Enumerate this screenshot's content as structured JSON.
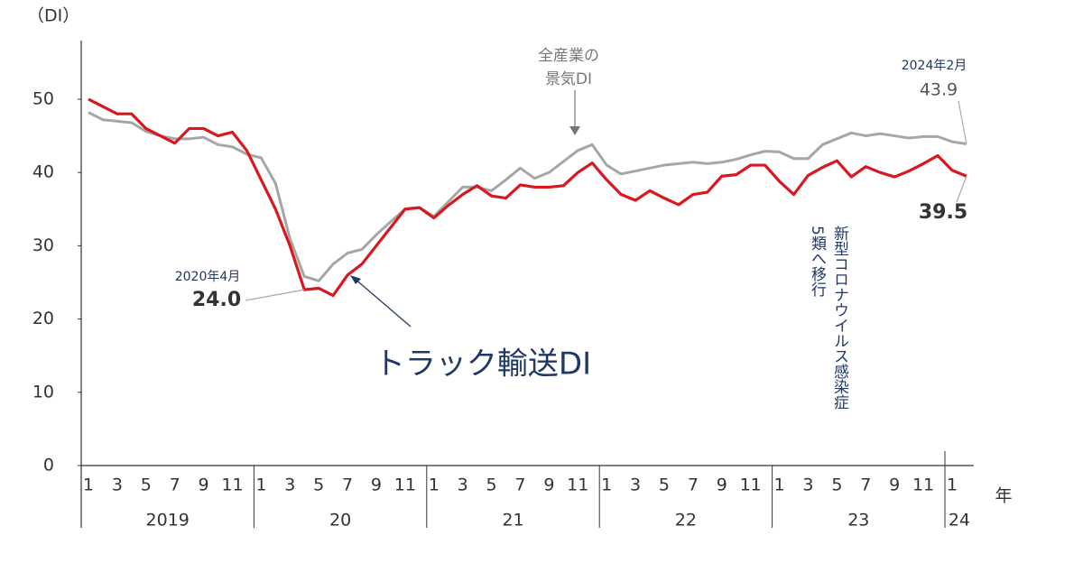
{
  "chart_data": {
    "type": "line",
    "y_label": "（DI）",
    "x_unit": "年",
    "categories": [
      "1",
      null,
      "3",
      null,
      "5",
      null,
      "7",
      null,
      "9",
      null,
      "11",
      null,
      "1",
      null,
      "3",
      null,
      "5",
      null,
      "7",
      null,
      "9",
      null,
      "11",
      null,
      "1",
      null,
      "3",
      null,
      "5",
      null,
      "7",
      null,
      "9",
      null,
      "11",
      null,
      "1",
      null,
      "3",
      null,
      "5",
      null,
      "7",
      null,
      "9",
      null,
      "11",
      null,
      "1",
      null,
      "3",
      null,
      "5",
      null,
      "7",
      null,
      "9",
      null,
      "11",
      null,
      "1",
      null
    ],
    "year_labels": [
      "2019",
      "20",
      "21",
      "22",
      "23",
      "24"
    ],
    "series": [
      {
        "name": "全産業の景気DI",
        "name_lines": [
          "全産業の",
          "景気DI"
        ],
        "color": "#a6a6a6",
        "values": [
          48.2,
          47.2,
          47,
          46.8,
          45.6,
          45,
          44.6,
          44.6,
          44.8,
          43.8,
          43.5,
          42.5,
          42,
          38.5,
          31,
          25.8,
          25.2,
          27.5,
          29,
          29.5,
          31.5,
          33.3,
          35,
          35.2,
          34,
          36,
          38,
          38,
          37.5,
          39,
          40.6,
          39.2,
          40,
          41.5,
          43,
          43.8,
          41,
          39.8,
          40.2,
          40.6,
          41,
          41.2,
          41.4,
          41.2,
          41.4,
          41.8,
          42.4,
          42.9,
          42.8,
          41.9,
          41.9,
          43.8,
          44.6,
          45.4,
          45,
          45.3,
          45,
          44.7,
          44.9,
          44.9,
          44.2,
          43.9
        ],
        "value_labels": [
          null,
          null,
          null,
          null,
          null,
          null,
          null,
          null,
          null,
          null,
          null,
          null,
          null,
          null,
          null,
          null,
          null,
          null,
          null,
          null,
          null,
          null,
          null,
          null,
          null,
          null,
          null,
          null,
          null,
          null,
          null,
          null,
          null,
          null,
          null,
          null,
          null,
          null,
          null,
          null,
          null,
          null,
          null,
          null,
          null,
          null,
          null,
          null,
          null,
          null,
          null,
          null,
          null,
          null,
          null,
          null,
          null,
          null,
          null,
          null,
          null,
          "43.9"
        ]
      },
      {
        "name": "トラック輸送DI",
        "color": "#d7181f",
        "values": [
          50,
          49,
          48,
          48,
          46,
          45,
          44,
          46,
          46,
          45,
          45.5,
          43,
          39,
          35,
          30,
          24.0,
          24.2,
          23.2,
          26,
          27.5,
          30,
          32.5,
          35,
          35.2,
          33.8,
          35.5,
          37,
          38.2,
          36.8,
          36.5,
          38.3,
          38,
          38,
          38.2,
          40,
          41.3,
          39,
          37,
          36.2,
          37.5,
          36.5,
          35.6,
          37,
          37.3,
          39.5,
          39.7,
          41,
          41,
          38.8,
          37,
          39.6,
          40.7,
          41.6,
          39.4,
          40.8,
          40,
          39.4,
          40.2,
          41.2,
          42.3,
          40.3,
          39.5
        ],
        "value_labels": [
          null,
          null,
          null,
          null,
          null,
          null,
          null,
          null,
          null,
          null,
          null,
          null,
          null,
          null,
          null,
          "24.0",
          null,
          null,
          null,
          null,
          null,
          null,
          null,
          null,
          null,
          null,
          null,
          null,
          null,
          null,
          null,
          null,
          null,
          null,
          null,
          null,
          null,
          null,
          null,
          null,
          null,
          null,
          null,
          null,
          null,
          null,
          null,
          null,
          null,
          null,
          null,
          null,
          null,
          null,
          null,
          null,
          null,
          null,
          null,
          null,
          null,
          "39.5"
        ]
      }
    ],
    "date_labels": [
      "2020年4月",
      "2024年2月"
    ],
    "note_lines": [
      "新型コロナウイルス感染症",
      "5類へ移行"
    ],
    "ylim": [
      0,
      58
    ],
    "yticks": [
      0,
      10,
      20,
      30,
      40,
      50
    ]
  }
}
